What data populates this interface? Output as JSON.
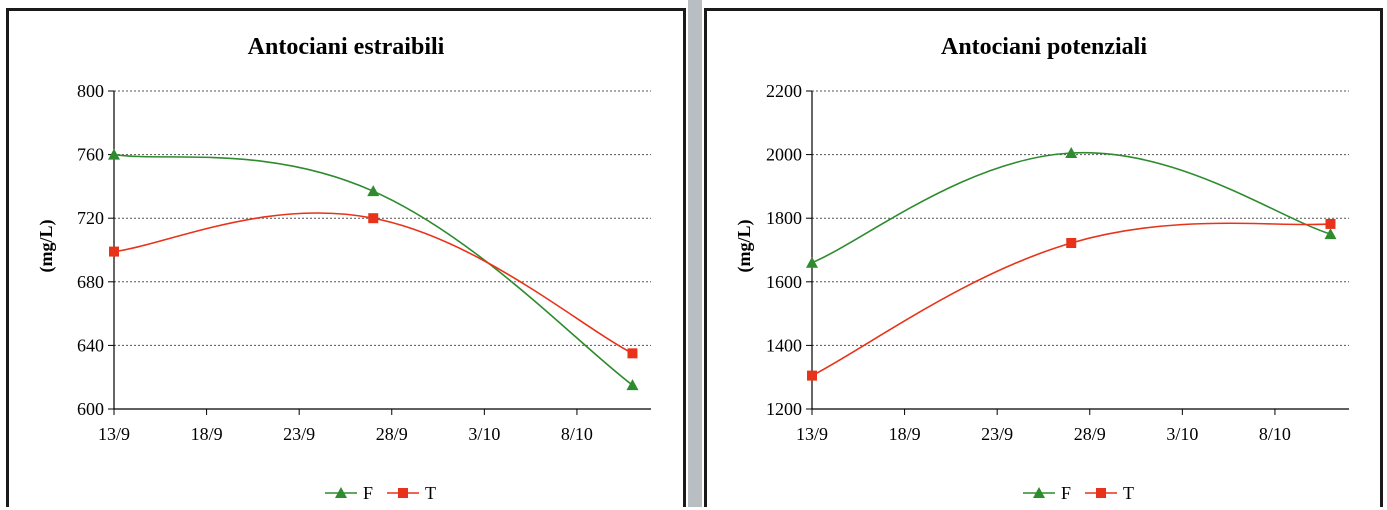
{
  "chart_data": [
    {
      "type": "line",
      "title": "Antociani estraibili",
      "xlabel": "",
      "ylabel": "(mg/L)",
      "ylim": [
        600,
        800
      ],
      "yticks": [
        600,
        640,
        680,
        720,
        760,
        800
      ],
      "xlim_days": [
        0,
        29
      ],
      "xticks": [
        {
          "label": "13/9",
          "day": 0
        },
        {
          "label": "18/9",
          "day": 5
        },
        {
          "label": "23/9",
          "day": 10
        },
        {
          "label": "28/9",
          "day": 15
        },
        {
          "label": "3/10",
          "day": 20
        },
        {
          "label": "8/10",
          "day": 25
        }
      ],
      "grid": "horizontal dotted",
      "legend": "bottom-center",
      "series": [
        {
          "name": "F",
          "color": "#2e8b2e",
          "marker": "triangle",
          "points": [
            {
              "x": "13/9",
              "day": 0,
              "y": 760
            },
            {
              "x": "27/9",
              "day": 14,
              "y": 737
            },
            {
              "x": "10/10",
              "day": 28,
              "y": 615
            }
          ]
        },
        {
          "name": "T",
          "color": "#e8331a",
          "marker": "square",
          "points": [
            {
              "x": "13/9",
              "day": 0,
              "y": 699
            },
            {
              "x": "27/9",
              "day": 14,
              "y": 720
            },
            {
              "x": "10/10",
              "day": 28,
              "y": 635
            }
          ]
        }
      ]
    },
    {
      "type": "line",
      "title": "Antociani potenziali",
      "xlabel": "",
      "ylabel": "(mg/L)",
      "ylim": [
        1200,
        2200
      ],
      "yticks": [
        1200,
        1400,
        1600,
        1800,
        2000,
        2200
      ],
      "xlim_days": [
        0,
        29
      ],
      "xticks": [
        {
          "label": "13/9",
          "day": 0
        },
        {
          "label": "18/9",
          "day": 5
        },
        {
          "label": "23/9",
          "day": 10
        },
        {
          "label": "28/9",
          "day": 15
        },
        {
          "label": "3/10",
          "day": 20
        },
        {
          "label": "8/10",
          "day": 25
        }
      ],
      "grid": "horizontal dotted",
      "legend": "bottom-center",
      "series": [
        {
          "name": "F",
          "color": "#2e8b2e",
          "marker": "triangle",
          "points": [
            {
              "x": "13/9",
              "day": 0,
              "y": 1660
            },
            {
              "x": "27/9",
              "day": 14,
              "y": 2005
            },
            {
              "x": "10/10",
              "day": 28,
              "y": 1750
            }
          ]
        },
        {
          "name": "T",
          "color": "#e8331a",
          "marker": "square",
          "points": [
            {
              "x": "13/9",
              "day": 0,
              "y": 1305
            },
            {
              "x": "27/9",
              "day": 14,
              "y": 1722
            },
            {
              "x": "10/10",
              "day": 28,
              "y": 1782
            }
          ]
        }
      ]
    }
  ]
}
